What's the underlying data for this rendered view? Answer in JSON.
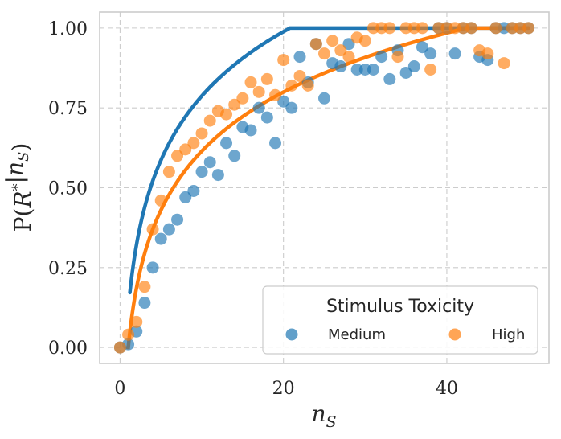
{
  "chart_data": {
    "type": "scatter",
    "xlabel": "n_S",
    "ylabel": "P(R*|n_S)",
    "xlim": [
      -2.5,
      52.5
    ],
    "ylim": [
      -0.05,
      1.05
    ],
    "xticks": [
      0,
      20,
      40
    ],
    "xtick_labels": [
      "0",
      "20",
      "40"
    ],
    "yticks": [
      0.0,
      0.25,
      0.5,
      0.75,
      1.0
    ],
    "ytick_labels": [
      "0.00",
      "0.25",
      "0.50",
      "0.75",
      "1.00"
    ],
    "grid": true,
    "legend": {
      "title": "Stimulus Toxicity",
      "placement": "bottom-right",
      "entries": [
        "Medium",
        "High"
      ]
    },
    "series": [
      {
        "name": "Medium",
        "color": "#1f77b4",
        "x": [
          0,
          1,
          2,
          3,
          4,
          5,
          6,
          7,
          8,
          9,
          10,
          11,
          12,
          13,
          14,
          15,
          16,
          17,
          18,
          19,
          20,
          21,
          22,
          23,
          24,
          25,
          26,
          27,
          28,
          29,
          30,
          31,
          32,
          33,
          34,
          35,
          36,
          37,
          38,
          39,
          40,
          41,
          42,
          43,
          44,
          45,
          46,
          47,
          48,
          49,
          50
        ],
        "y": [
          0.0,
          0.01,
          0.05,
          0.14,
          0.25,
          0.34,
          0.37,
          0.4,
          0.47,
          0.49,
          0.55,
          0.58,
          0.54,
          0.64,
          0.6,
          0.69,
          0.68,
          0.75,
          0.72,
          0.64,
          0.77,
          0.75,
          0.91,
          0.83,
          0.95,
          0.78,
          0.89,
          0.88,
          0.95,
          0.87,
          0.87,
          0.87,
          0.91,
          0.84,
          0.93,
          0.86,
          0.88,
          0.94,
          0.92,
          1.0,
          1.0,
          0.92,
          1.0,
          1.0,
          0.91,
          0.9,
          1.0,
          1.0,
          1.0,
          1.0,
          1.0
        ],
        "fit": {
          "model": "logarithmic",
          "a": 0.2903,
          "b": 0.1189,
          "x_start": 1.2
        }
      },
      {
        "name": "High",
        "color": "#ff7f0e",
        "x": [
          0,
          1,
          2,
          3,
          4,
          5,
          6,
          7,
          8,
          9,
          10,
          11,
          12,
          13,
          14,
          15,
          16,
          17,
          18,
          19,
          20,
          21,
          22,
          23,
          24,
          25,
          26,
          27,
          28,
          29,
          30,
          31,
          32,
          33,
          34,
          35,
          36,
          37,
          38,
          39,
          40,
          41,
          42,
          43,
          44,
          45,
          46,
          47,
          48,
          49,
          50
        ],
        "y": [
          0.0,
          0.04,
          0.08,
          0.19,
          0.37,
          0.46,
          0.55,
          0.6,
          0.62,
          0.64,
          0.67,
          0.71,
          0.74,
          0.73,
          0.76,
          0.78,
          0.83,
          0.8,
          0.84,
          0.79,
          0.9,
          0.82,
          0.85,
          0.82,
          0.95,
          0.92,
          0.96,
          0.93,
          0.91,
          0.97,
          0.96,
          1.0,
          1.0,
          1.0,
          0.91,
          1.0,
          1.0,
          1.0,
          0.87,
          1.0,
          1.0,
          1.0,
          1.0,
          1.0,
          0.93,
          0.92,
          1.0,
          0.89,
          1.0,
          1.0,
          1.0
        ],
        "fit": {
          "model": "logarithmic",
          "a": 0.2669,
          "b": 0.0,
          "x_start": 0.9
        }
      }
    ]
  }
}
